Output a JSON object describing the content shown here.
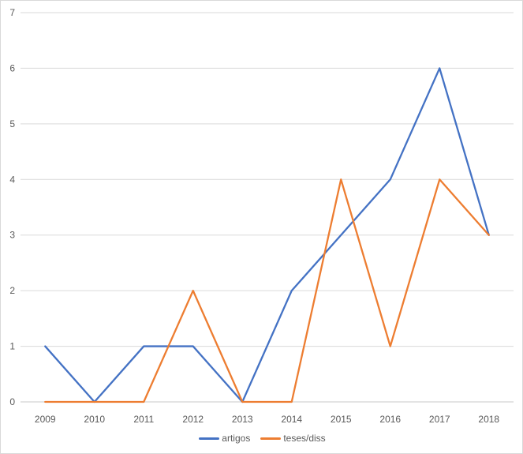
{
  "chart_data": {
    "type": "line",
    "title": "",
    "categories": [
      "2009",
      "2010",
      "2011",
      "2012",
      "2013",
      "2014",
      "2015",
      "2016",
      "2017",
      "2018"
    ],
    "series": [
      {
        "name": "artigos",
        "color": "#4472C4",
        "values": [
          1,
          0,
          1,
          1,
          0,
          2,
          3,
          4,
          6,
          3
        ]
      },
      {
        "name": "teses/diss",
        "color": "#ED7D31",
        "values": [
          0,
          0,
          0,
          2,
          0,
          0,
          4,
          1,
          4,
          3
        ]
      }
    ],
    "y_ticks": [
      0,
      1,
      2,
      3,
      4,
      5,
      6,
      7
    ],
    "ylim": [
      0,
      7
    ],
    "grid": "horizontal-only",
    "gridline_color": "#D9D9D9",
    "axis_line_color": "#C9C9C9",
    "axis_label_color": "#595959",
    "legend_position": "bottom-center",
    "legend": [
      "artigos",
      "teses/diss"
    ]
  }
}
